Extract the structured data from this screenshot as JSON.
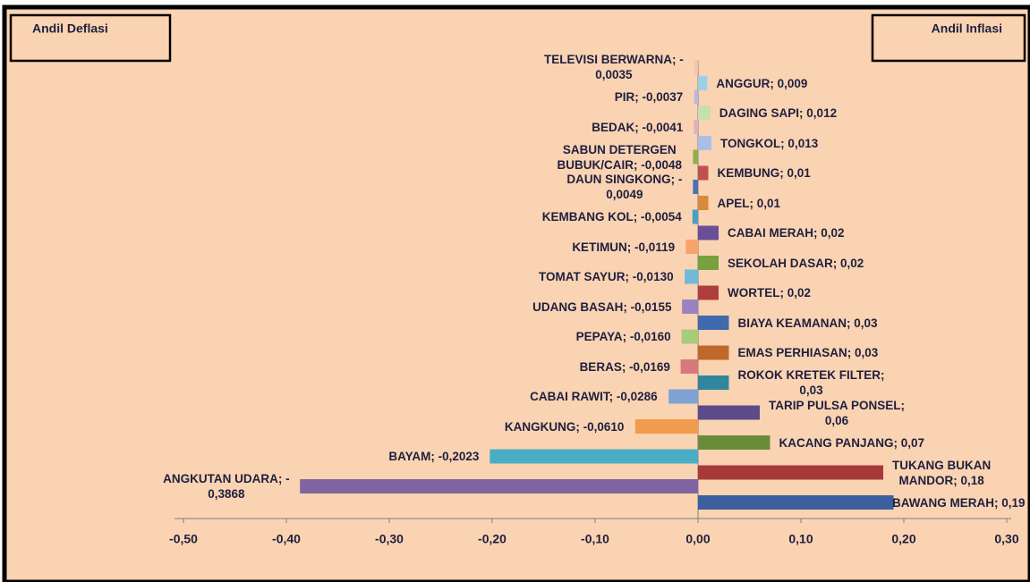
{
  "chart_data": {
    "type": "bar",
    "orientation": "horizontal",
    "xlim": [
      -0.5,
      0.3
    ],
    "xticks": [
      {
        "value": -0.5,
        "label": "-0,50"
      },
      {
        "value": -0.4,
        "label": "-0,40"
      },
      {
        "value": -0.3,
        "label": "-0,30"
      },
      {
        "value": -0.2,
        "label": "-0,20"
      },
      {
        "value": -0.1,
        "label": "-0,10"
      },
      {
        "value": 0,
        "label": "0,00"
      },
      {
        "value": 0.1,
        "label": "0,10"
      },
      {
        "value": 0.2,
        "label": "0,20"
      },
      {
        "value": 0.3,
        "label": "0,30"
      }
    ],
    "series": [
      {
        "name": "Andil Deflasi",
        "values": [
          -0.0035,
          -0.0037,
          -0.0041,
          -0.0048,
          -0.0049,
          -0.0054,
          -0.0119,
          -0.013,
          -0.0155,
          -0.016,
          -0.0169,
          -0.0286,
          -0.061,
          -0.2023,
          -0.3868
        ],
        "value_labels": [
          "TELEVISI BERWARNA; -\n0,0035",
          "PIR; -0,0037",
          "BEDAK; -0,0041",
          "SABUN DETERGEN\nBUBUK/CAIR; -0,0048",
          "DAUN SINGKONG; -\n0,0049",
          "KEMBANG KOL; -0,0054",
          "KETIMUN; -0,0119",
          "TOMAT SAYUR; -0,0130",
          "UDANG BASAH; -0,0155",
          "PEPAYA; -0,0160",
          "BERAS; -0,0169",
          "CABAI RAWIT; -0,0286",
          "KANGKUNG; -0,0610",
          "BAYAM; -0,2023",
          "ANGKUTAN UDARA; -\n0,3868"
        ],
        "colors": [
          "#f5c4b0",
          "#b8b8e0",
          "#e0b0c0",
          "#8db04a",
          "#4f6fb0",
          "#4aa0c0",
          "#f6a46a",
          "#6fbad8",
          "#9983c0",
          "#a8cc7c",
          "#d87878",
          "#7ea3d4",
          "#f29a4d",
          "#4bacc6",
          "#8064a2"
        ]
      },
      {
        "name": "Andil Inflasi",
        "values": [
          0.009,
          0.012,
          0.013,
          0.01,
          0.01,
          0.02,
          0.02,
          0.02,
          0.03,
          0.03,
          0.03,
          0.06,
          0.07,
          0.18,
          0.19
        ],
        "value_labels": [
          "ANGGUR; 0,009",
          "DAGING SAPI; 0,012",
          "TONGKOL; 0,013",
          "KEMBUNG; 0,01",
          "APEL; 0,01",
          "CABAI MERAH; 0,02",
          "SEKOLAH DASAR; 0,02",
          "WORTEL; 0,02",
          "BIAYA KEAMANAN; 0,03",
          "EMAS PERHIASAN; 0,03",
          "ROKOK KRETEK FILTER;\n0,03",
          "TARIP PULSA PONSEL;\n0,06",
          "KACANG PANJANG; 0,07",
          "TUKANG BUKAN\nMANDOR; 0,18",
          "BAWANG MERAH; 0,19"
        ],
        "colors": [
          "#9dd0e8",
          "#c6deb0",
          "#a8c0e8",
          "#c0504d",
          "#d78a3c",
          "#6a4e98",
          "#77a03f",
          "#b03d3d",
          "#3f6aad",
          "#c0672a",
          "#31859c",
          "#5f4a8b",
          "#6a8c3a",
          "#a73a38",
          "#3c5f9e"
        ]
      }
    ]
  }
}
